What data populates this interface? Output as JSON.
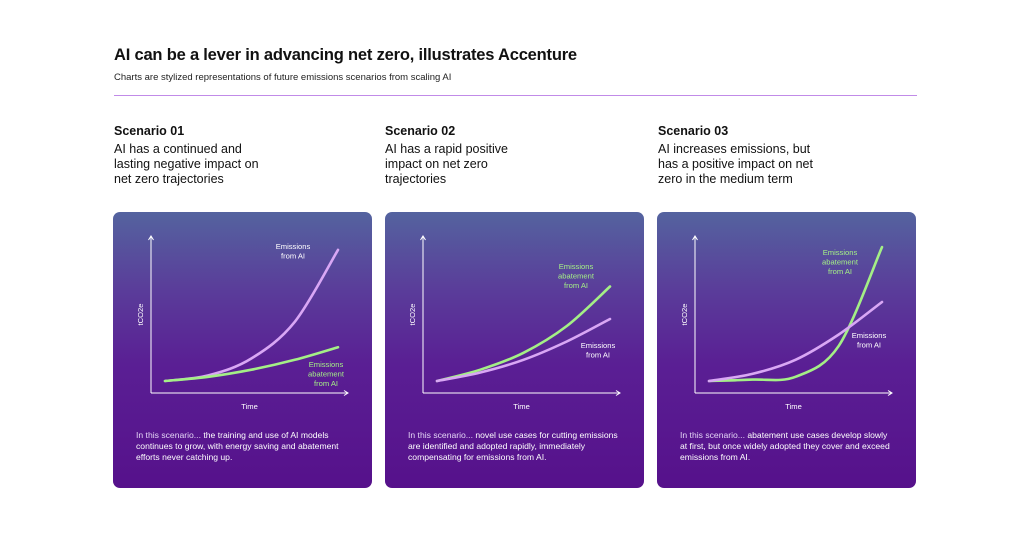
{
  "header": {
    "title": "AI can be a lever in advancing net zero, illustrates Accenture",
    "subtitle": "Charts are stylized representations of future emissions scenarios from scaling AI"
  },
  "colors": {
    "emissions_from_ai": "#d9a7f5",
    "emissions_abatement_from_ai": "#a4ef86",
    "divider": "#c18be8"
  },
  "scenarios": [
    {
      "heading": "Scenario 01",
      "description": "AI has a continued and lasting negative impact on net zero trajectories",
      "note_lead": "In this scenario...",
      "note_body": " the training and use of AI models continues to grow, with energy saving and abatement efforts never catching up."
    },
    {
      "heading": "Scenario 02",
      "description": "AI has a rapid positive impact on net zero trajectories",
      "note_lead": "In this scenario...",
      "note_body": " novel use cases for cutting emissions are identified and adopted rapidly, immediately compensating for emissions from AI."
    },
    {
      "heading": "Scenario 03",
      "description": "AI increases emissions, but has a positive impact on net zero in the medium term",
      "note_lead": "In this scenario...",
      "note_body": " abatement use cases develop slowly at first, but once widely adopted they cover and exceed emissions from AI."
    }
  ],
  "chart_data": [
    {
      "type": "line",
      "xlabel": "Time",
      "ylabel": "tCO2e",
      "xlim": [
        0,
        1
      ],
      "ylim": [
        0,
        1
      ],
      "series": [
        {
          "key": "emissions",
          "name": "Emissions from AI",
          "name_lines": [
            "Emissions",
            "from AI"
          ],
          "color": "#d9a7f5",
          "x": [
            0,
            0.25,
            0.5,
            0.75,
            1
          ],
          "y": [
            0,
            0.04,
            0.16,
            0.42,
            0.93
          ]
        },
        {
          "key": "abatement",
          "name": "Emissions abatement from AI",
          "name_lines": [
            "Emissions",
            "abatement",
            "from AI"
          ],
          "color": "#a4ef86",
          "x": [
            0,
            0.25,
            0.5,
            0.75,
            1
          ],
          "y": [
            0,
            0.03,
            0.08,
            0.15,
            0.24
          ]
        }
      ]
    },
    {
      "type": "line",
      "xlabel": "Time",
      "ylabel": "tCO2e",
      "xlim": [
        0,
        1
      ],
      "ylim": [
        0,
        1
      ],
      "series": [
        {
          "key": "abatement",
          "name": "Emissions abatement from AI",
          "name_lines": [
            "Emissions",
            "abatement",
            "from AI"
          ],
          "color": "#a4ef86",
          "x": [
            0,
            0.25,
            0.5,
            0.75,
            1
          ],
          "y": [
            0,
            0.08,
            0.2,
            0.39,
            0.67
          ]
        },
        {
          "key": "emissions",
          "name": "Emissions from AI",
          "name_lines": [
            "Emissions",
            "from AI"
          ],
          "color": "#d9a7f5",
          "x": [
            0,
            0.25,
            0.5,
            0.75,
            1
          ],
          "y": [
            0,
            0.06,
            0.15,
            0.28,
            0.44
          ]
        }
      ]
    },
    {
      "type": "line",
      "xlabel": "Time",
      "ylabel": "tCO2e",
      "xlim": [
        0,
        1
      ],
      "ylim": [
        0,
        1
      ],
      "series": [
        {
          "key": "abatement",
          "name": "Emissions abatement from AI",
          "name_lines": [
            "Emissions",
            "abatement",
            "from AI"
          ],
          "color": "#a4ef86",
          "x": [
            0,
            0.25,
            0.5,
            0.75,
            1
          ],
          "y": [
            0,
            0.01,
            0.03,
            0.25,
            0.95
          ]
        },
        {
          "key": "emissions",
          "name": "Emissions from AI",
          "name_lines": [
            "Emissions",
            "from AI"
          ],
          "color": "#d9a7f5",
          "x": [
            0,
            0.25,
            0.5,
            0.75,
            1
          ],
          "y": [
            0,
            0.05,
            0.15,
            0.33,
            0.56
          ]
        }
      ]
    }
  ]
}
